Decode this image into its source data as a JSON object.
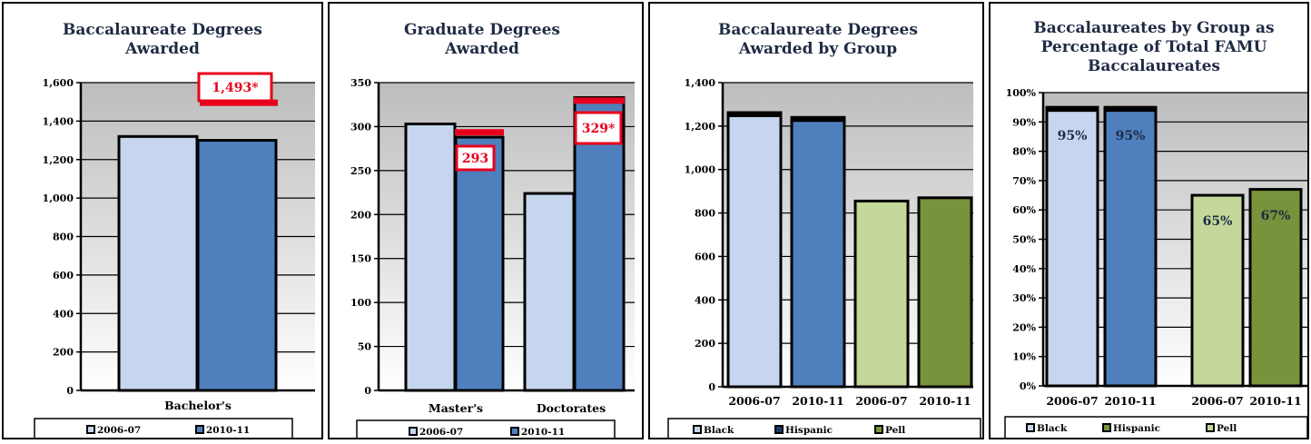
{
  "charts": {
    "c1": {
      "title_lines": [
        "Baccalaureate Degrees",
        "Awarded"
      ],
      "category_labels": [
        "Bachelor's"
      ],
      "legend": [
        "2006-07",
        "2010-11"
      ]
    },
    "c2": {
      "title_lines": [
        "Graduate Degrees",
        "Awarded"
      ],
      "category_labels": [
        "Master's",
        "Doctorates"
      ],
      "legend": [
        "2006-07",
        "2010-11"
      ]
    },
    "c3": {
      "title_lines": [
        "Baccalaureate Degrees",
        "Awarded by Group"
      ],
      "category_labels": [
        "2006-07",
        "2010-11",
        "2006-07",
        "2010-11"
      ],
      "legend": [
        "Black",
        "Hispanic",
        "Pell"
      ]
    },
    "c4": {
      "title_lines": [
        "Baccalaureates by Group as",
        "Percentage of Total FAMU",
        "Baccalaureates"
      ],
      "category_labels": [
        "2006-07",
        "2010-11",
        "2006-07",
        "2010-11"
      ],
      "legend": [
        "Black",
        "Hispanic",
        "Pell"
      ]
    }
  },
  "colors": {
    "light_blue": "#c6d6ee",
    "dark_blue": "#4f80bd",
    "light_green": "#c4d89b",
    "dark_green": "#77933c",
    "target_red": "#e8001c",
    "plot_bg_top": "#bdbdbd",
    "plot_bg_bottom": "#ffffff"
  },
  "chart_data": [
    {
      "type": "bar",
      "title": "Baccalaureate Degrees Awarded",
      "categories": [
        "Bachelor's"
      ],
      "series": [
        {
          "name": "2006-07",
          "values": [
            1320
          ]
        },
        {
          "name": "2010-11",
          "values": [
            1300
          ]
        }
      ],
      "ylim": [
        0,
        1600
      ],
      "yticks": [
        "0",
        "200",
        "400",
        "600",
        "800",
        "1,000",
        "1,200",
        "1,400",
        "1,600"
      ],
      "annotations": [
        {
          "text": "1,493*",
          "value": 1493,
          "series": "2010-11",
          "category": "Bachelor's"
        }
      ],
      "grid": true,
      "legend_position": "bottom"
    },
    {
      "type": "bar",
      "title": "Graduate Degrees Awarded",
      "categories": [
        "Master's",
        "Doctorates"
      ],
      "series": [
        {
          "name": "2006-07",
          "values": [
            303,
            224
          ]
        },
        {
          "name": "2010-11",
          "values": [
            288,
            333
          ]
        }
      ],
      "ylim": [
        0,
        350
      ],
      "yticks": [
        "0",
        "50",
        "100",
        "150",
        "200",
        "250",
        "300",
        "350"
      ],
      "annotations": [
        {
          "text": "293",
          "value": 293,
          "series": "2010-11",
          "category": "Master's"
        },
        {
          "text": "329*",
          "value": 329,
          "series": "2010-11",
          "category": "Doctorates"
        }
      ],
      "grid": true,
      "legend_position": "bottom"
    },
    {
      "type": "bar",
      "title": "Baccalaureate Degrees Awarded by Group",
      "categories": [
        "2006-07",
        "2010-11",
        "2006-07",
        "2010-11"
      ],
      "values": [
        1262,
        1240,
        855,
        870
      ],
      "ylim": [
        0,
        1400
      ],
      "yticks": [
        "0",
        "200",
        "400",
        "600",
        "800",
        "1,000",
        "1,200",
        "1,400"
      ],
      "grid": true,
      "legend_position": "bottom"
    },
    {
      "type": "bar",
      "title": "Baccalaureates by Group as Percentage of Total FAMU Baccalaureates",
      "categories": [
        "2006-07",
        "2010-11",
        "2006-07",
        "2010-11"
      ],
      "values": [
        95,
        95,
        65,
        67
      ],
      "data_labels": [
        "95%",
        "95%",
        "65%",
        "67%"
      ],
      "ylim": [
        0,
        100
      ],
      "yticks": [
        "0%",
        "10%",
        "20%",
        "30%",
        "40%",
        "50%",
        "60%",
        "70%",
        "80%",
        "90%",
        "100%"
      ],
      "grid": true,
      "legend_position": "bottom"
    }
  ]
}
